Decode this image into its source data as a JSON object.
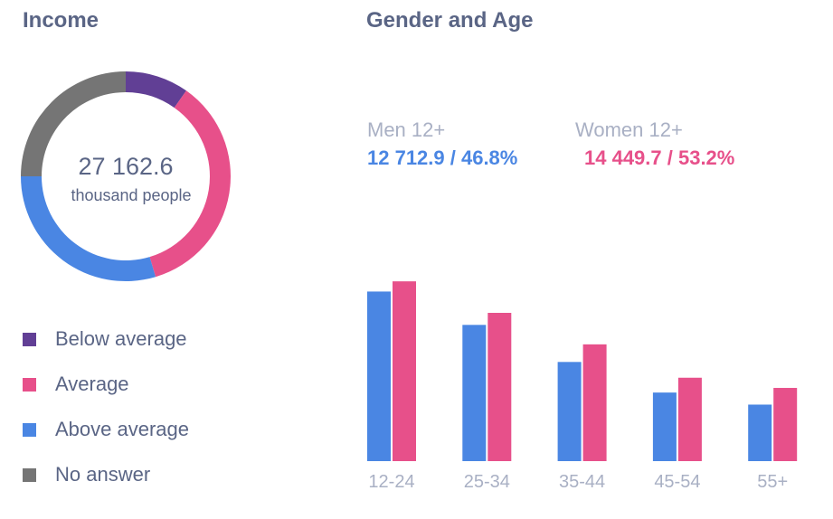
{
  "colors": {
    "below_average": "#613f95",
    "average": "#e7508a",
    "above_average": "#4a86e3",
    "no_answer": "#757575",
    "men": "#4a86e3",
    "women": "#e7508a"
  },
  "income": {
    "title": "Income",
    "center_value": "27 162.6",
    "center_unit": "thousand people",
    "legend": [
      {
        "key": "below_average",
        "label": "Below average"
      },
      {
        "key": "average",
        "label": "Average"
      },
      {
        "key": "above_average",
        "label": "Above average"
      },
      {
        "key": "no_answer",
        "label": "No answer"
      }
    ]
  },
  "gender_age": {
    "title": "Gender and Age",
    "men": {
      "label": "Men 12+",
      "value": "12 712.9 / 46.8%"
    },
    "women": {
      "label": "Women 12+",
      "value": "14 449.7 / 53.2%"
    }
  },
  "chart_data": [
    {
      "type": "pie",
      "title": "Income",
      "categories": [
        "Below average",
        "Average",
        "Above average",
        "No answer"
      ],
      "values": [
        9.8,
        35.6,
        29.6,
        25.0
      ],
      "unit": "%",
      "start_angle_deg": 0,
      "donut": true
    },
    {
      "type": "bar",
      "title": "Gender and Age",
      "categories": [
        "12-24",
        "25-34",
        "35-44",
        "45-54",
        "55+"
      ],
      "series": [
        {
          "name": "Men 12+",
          "key": "men",
          "values": [
            183,
            147,
            107,
            74,
            61
          ]
        },
        {
          "name": "Women 12+",
          "key": "women",
          "values": [
            194,
            160,
            126,
            90,
            79
          ]
        }
      ],
      "ylim": [
        0,
        200
      ],
      "grid": false,
      "xlabel": "",
      "ylabel": ""
    }
  ]
}
